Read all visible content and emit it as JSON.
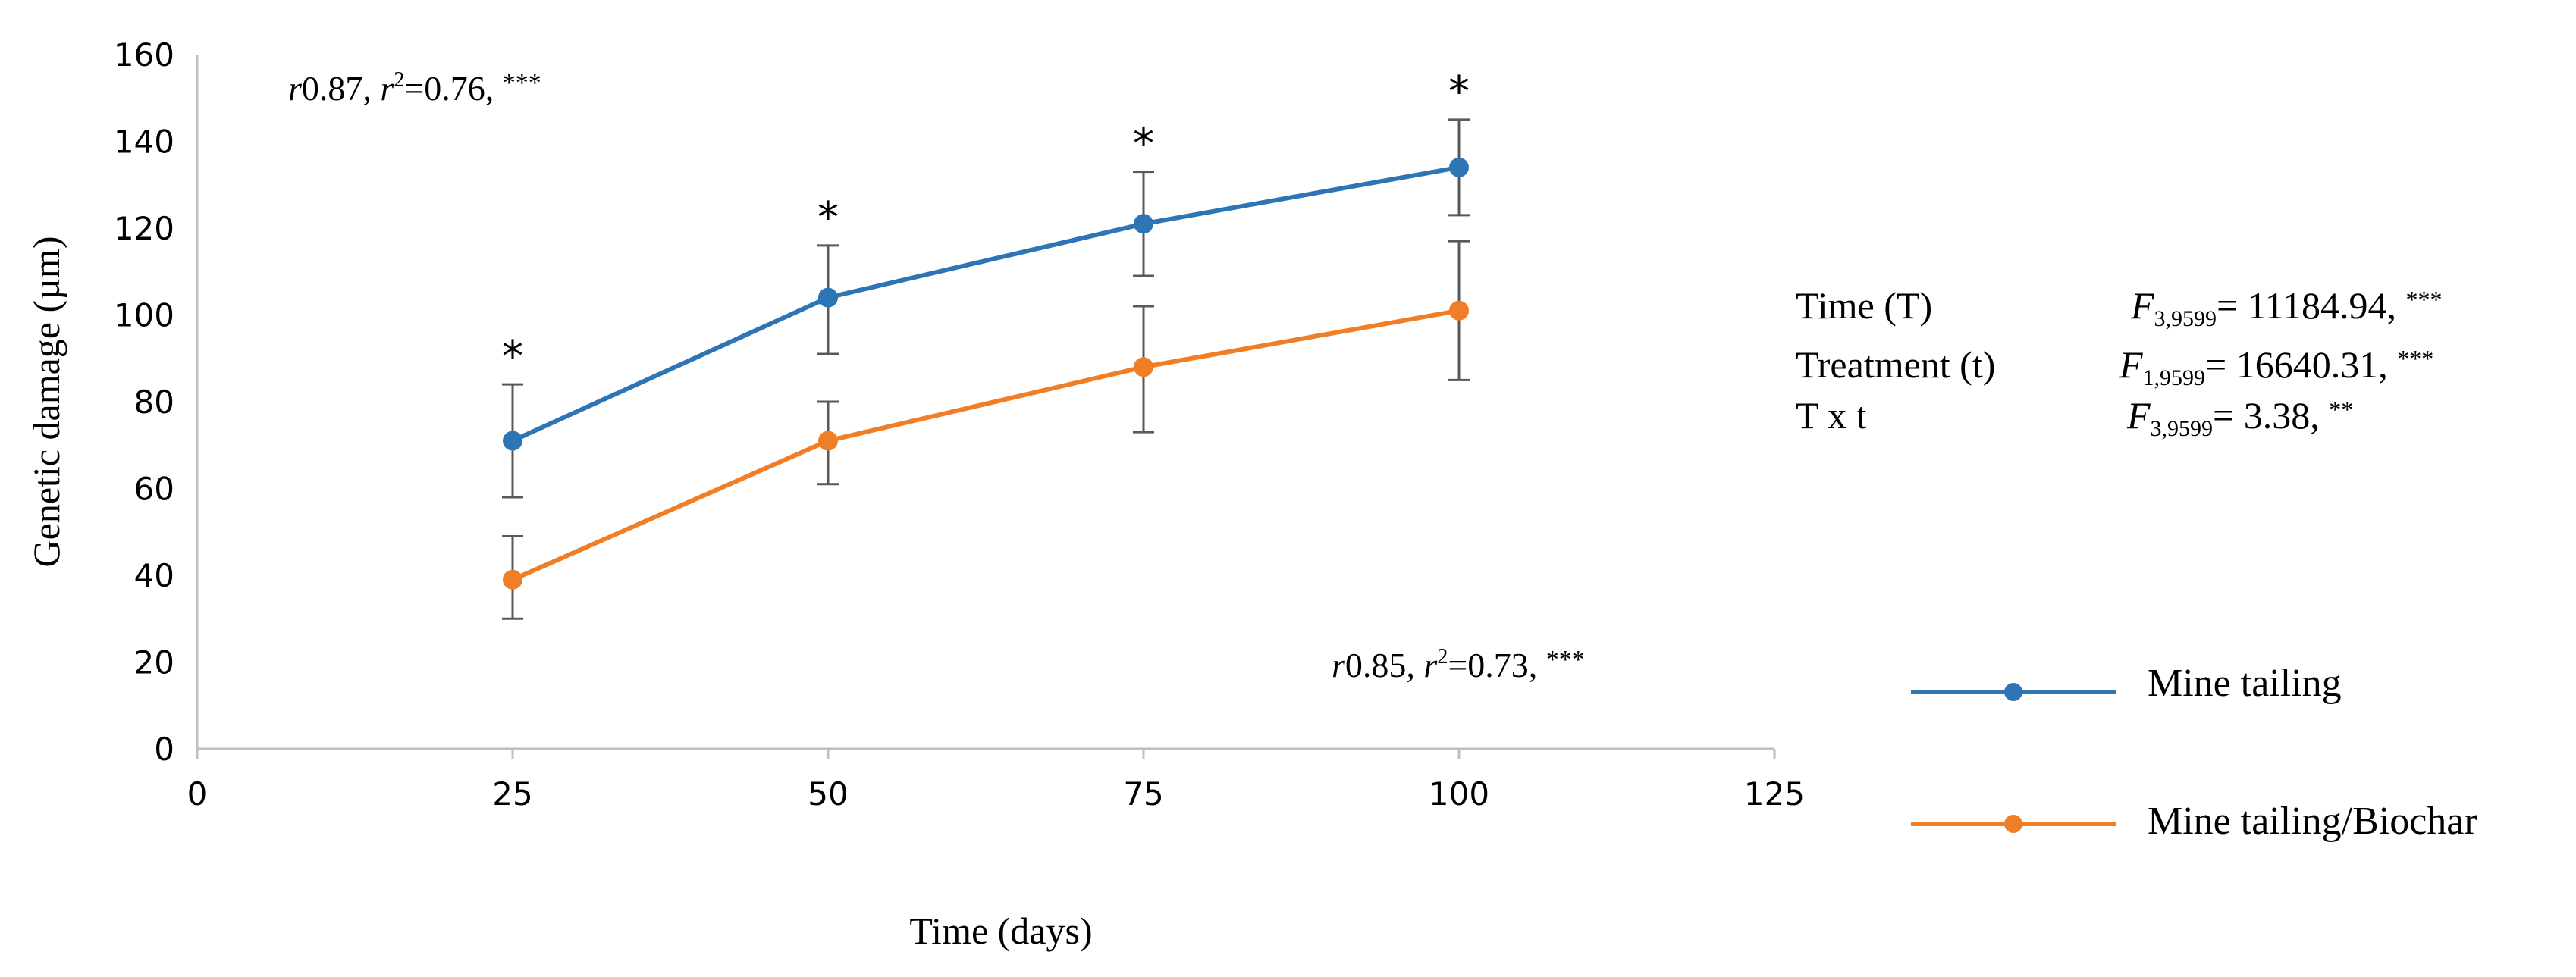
{
  "chart_data": {
    "type": "line",
    "xlabel": "Time (days)",
    "ylabel": "Genetic damage (µm)",
    "xlim": [
      0,
      125
    ],
    "ylim": [
      0,
      160
    ],
    "xticks": [
      0,
      25,
      50,
      75,
      100,
      125
    ],
    "yticks": [
      0,
      20,
      40,
      60,
      80,
      100,
      120,
      140,
      160
    ],
    "grid": false,
    "legend_position": "right",
    "series": [
      {
        "name": "Mine tailing",
        "color": "#2e75b6",
        "x": [
          25,
          50,
          75,
          100
        ],
        "values": [
          71,
          104,
          121,
          134
        ],
        "err_low": [
          58,
          91,
          109,
          123
        ],
        "err_high": [
          84,
          116,
          133,
          145
        ],
        "significance": [
          "*",
          "*",
          "*",
          "*"
        ]
      },
      {
        "name": "Mine tailing/Biochar",
        "color": "#f07e26",
        "x": [
          25,
          50,
          75,
          100
        ],
        "values": [
          39,
          71,
          88,
          101
        ],
        "err_low": [
          30,
          61,
          73,
          85
        ],
        "err_high": [
          49,
          80,
          102,
          117
        ]
      }
    ],
    "annotations": {
      "top": {
        "r": "0.87",
        "r2": "0.76",
        "sig": "***"
      },
      "bottom": {
        "r": "0.85",
        "r2": "0.73",
        "sig": "***"
      }
    },
    "stats": [
      {
        "label": "Time (T)",
        "F_sub": "3,9599",
        "value": "= 11184.94, ",
        "sig": "***"
      },
      {
        "label": "Treatment (t)",
        "F_sub": "1,9599",
        "value": "= 16640.31, ",
        "sig": "***"
      },
      {
        "label": "T x t",
        "F_sub": "3,9599",
        "value": "= 3.38, ",
        "sig": "**"
      }
    ]
  }
}
